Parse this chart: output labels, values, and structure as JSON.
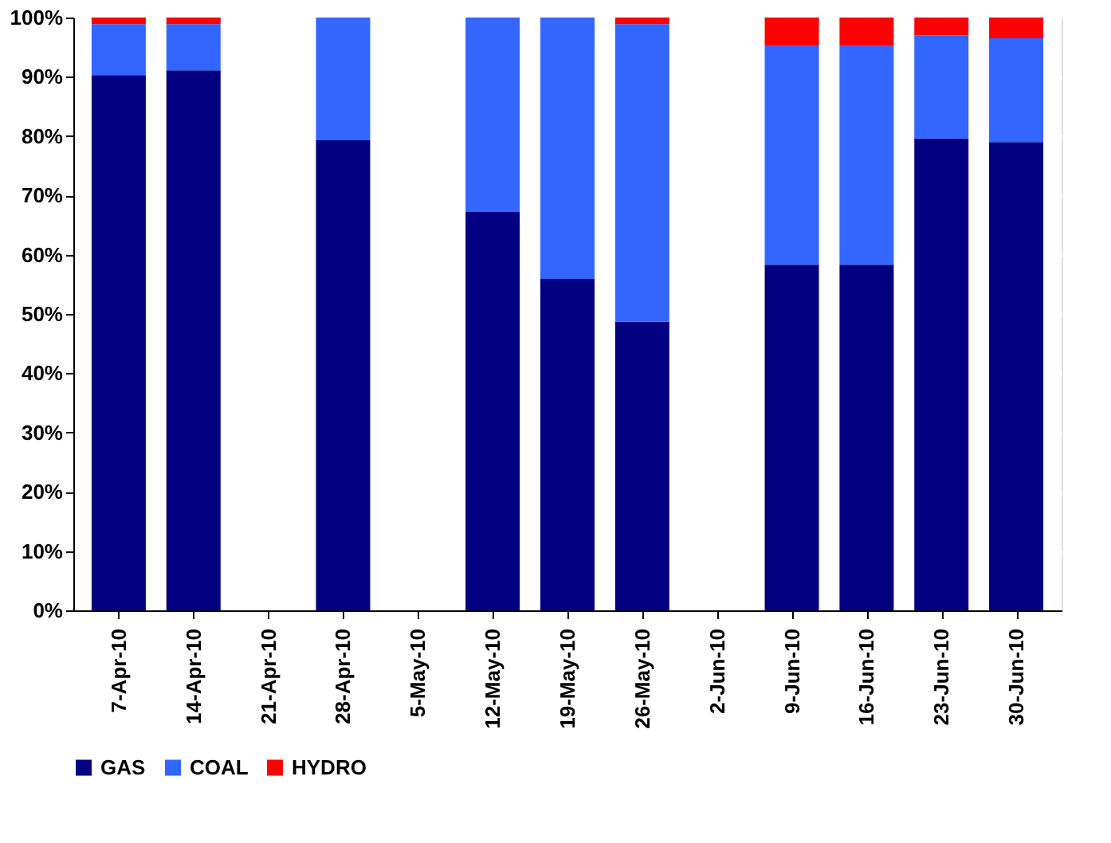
{
  "chart_data": {
    "type": "bar",
    "stacked": true,
    "categories": [
      "7-Apr-10",
      "14-Apr-10",
      "21-Apr-10",
      "28-Apr-10",
      "5-May-10",
      "12-May-10",
      "19-May-10",
      "26-May-10",
      "2-Jun-10",
      "9-Jun-10",
      "16-Jun-10",
      "23-Jun-10",
      "30-Jun-10"
    ],
    "series": [
      {
        "name": "GAS",
        "color": "#000080",
        "values": [
          90.3,
          91.1,
          null,
          79.3,
          null,
          67.2,
          55.9,
          48.7,
          null,
          58.3,
          58.3,
          79.6,
          79.0
        ]
      },
      {
        "name": "COAL",
        "color": "#3366ff",
        "values": [
          8.6,
          7.8,
          null,
          20.7,
          null,
          32.8,
          44.1,
          50.2,
          null,
          36.9,
          36.9,
          17.4,
          17.5
        ]
      },
      {
        "name": "HYDRO",
        "color": "#ff0000",
        "values": [
          1.1,
          1.1,
          null,
          0,
          null,
          0,
          0,
          1.1,
          null,
          4.8,
          4.8,
          3.0,
          3.5
        ]
      }
    ],
    "ylim": [
      0,
      100
    ],
    "yticks": [
      {
        "value": 0,
        "label": "0%"
      },
      {
        "value": 10,
        "label": "10%"
      },
      {
        "value": 20,
        "label": "20%"
      },
      {
        "value": 30,
        "label": "30%"
      },
      {
        "value": 40,
        "label": "40%"
      },
      {
        "value": 50,
        "label": "50%"
      },
      {
        "value": 60,
        "label": "60%"
      },
      {
        "value": 70,
        "label": "70%"
      },
      {
        "value": 80,
        "label": "80%"
      },
      {
        "value": 90,
        "label": "90%"
      },
      {
        "value": 100,
        "label": "100%"
      }
    ],
    "grid": "y",
    "legend": "bottom"
  }
}
